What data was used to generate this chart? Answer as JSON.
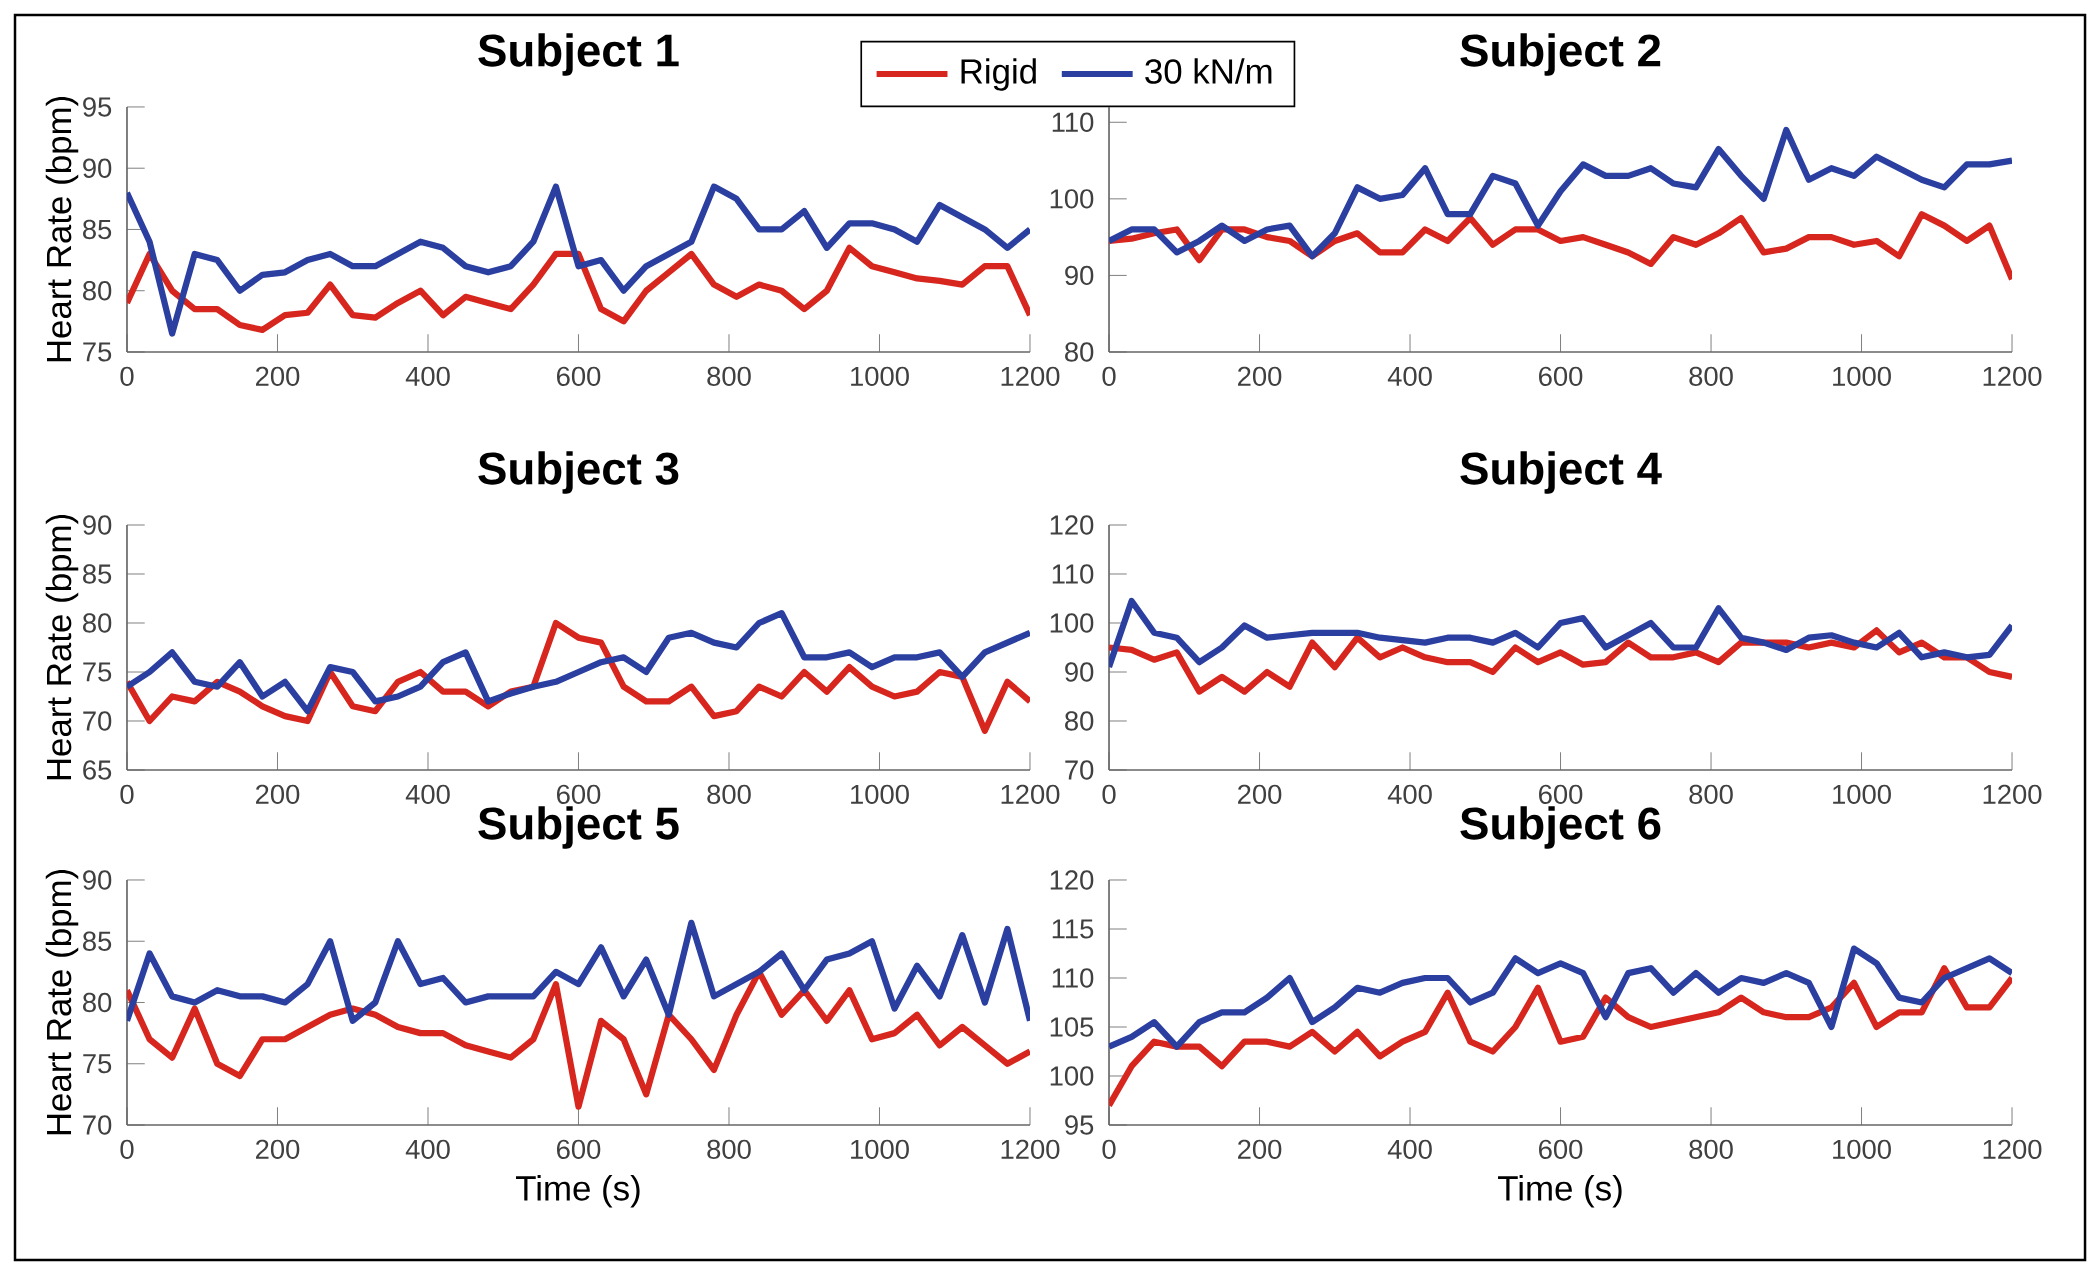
{
  "chart_data": [
    {
      "type": "line",
      "title": "Subject 1",
      "ylabel": "Heart Rate (bpm)",
      "legend": "top",
      "line_style": "solid",
      "xlim": [
        0,
        1200
      ],
      "ylim": [
        75,
        95
      ],
      "xticks": [
        0,
        200,
        400,
        600,
        800,
        1000,
        1200
      ],
      "yticks": [
        75,
        80,
        85,
        90,
        95
      ],
      "x": [
        0,
        30,
        60,
        90,
        120,
        150,
        180,
        210,
        240,
        270,
        300,
        330,
        360,
        390,
        420,
        450,
        480,
        510,
        540,
        570,
        600,
        630,
        660,
        690,
        720,
        750,
        780,
        810,
        840,
        870,
        900,
        930,
        960,
        990,
        1020,
        1050,
        1080,
        1110,
        1140,
        1170,
        1200
      ],
      "series": [
        {
          "name": "Rigid",
          "color": "#d7261e",
          "values": [
            79,
            83,
            80,
            78.5,
            78.5,
            77.2,
            76.8,
            78,
            78.2,
            80.5,
            78,
            77.8,
            79,
            80,
            78,
            79.5,
            79,
            78.5,
            80.5,
            83,
            83,
            78.5,
            77.5,
            80,
            81.5,
            83,
            80.5,
            79.5,
            80.5,
            80,
            78.5,
            80,
            83.5,
            82,
            81.5,
            81,
            80.8,
            80.5,
            82,
            82,
            78
          ]
        },
        {
          "name": "30 kN/m",
          "color": "#2a3fa0",
          "values": [
            88,
            84,
            76.5,
            83,
            82.5,
            80,
            81.3,
            81.5,
            82.5,
            83,
            82,
            82,
            83,
            84,
            83.5,
            82,
            81.5,
            82,
            84,
            88.5,
            82,
            82.5,
            80,
            82,
            83,
            84,
            88.5,
            87.5,
            85,
            85,
            86.5,
            83.5,
            85.5,
            85.5,
            85,
            84,
            87,
            86,
            85,
            83.5,
            85
          ]
        }
      ]
    },
    {
      "type": "line",
      "title": "Subject 2",
      "line_style": "solid",
      "xlim": [
        0,
        1200
      ],
      "ylim": [
        80,
        112
      ],
      "xticks": [
        0,
        200,
        400,
        600,
        800,
        1000,
        1200
      ],
      "yticks": [
        80,
        90,
        100,
        110
      ],
      "x": [
        0,
        30,
        60,
        90,
        120,
        150,
        180,
        210,
        240,
        270,
        300,
        330,
        360,
        390,
        420,
        450,
        480,
        510,
        540,
        570,
        600,
        630,
        660,
        690,
        720,
        750,
        780,
        810,
        840,
        870,
        900,
        930,
        960,
        990,
        1020,
        1050,
        1080,
        1110,
        1140,
        1170,
        1200
      ],
      "series": [
        {
          "color": "#d7261e",
          "values": [
            94.5,
            94.8,
            95.5,
            96,
            92,
            96,
            96,
            95,
            94.5,
            92.5,
            94.5,
            95.5,
            93,
            93,
            96,
            94.5,
            97.5,
            94,
            96,
            96,
            94.5,
            95,
            94,
            93,
            91.5,
            95,
            94,
            95.5,
            97.5,
            93,
            93.5,
            95,
            95,
            94,
            94.5,
            92.5,
            98,
            96.5,
            94.5,
            96.5,
            89.5
          ]
        },
        {
          "color": "#2a3fa0",
          "values": [
            94.5,
            96,
            96,
            93,
            94.5,
            96.5,
            94.5,
            96,
            96.5,
            92.5,
            95.5,
            101.5,
            100,
            100.5,
            104,
            98,
            98,
            103,
            102,
            96.5,
            101,
            104.5,
            103,
            103,
            104,
            102,
            101.5,
            106.5,
            103,
            100,
            109,
            102.5,
            104,
            103,
            105.5,
            104,
            102.5,
            101.5,
            104.5,
            104.5,
            105
          ]
        }
      ]
    },
    {
      "type": "line",
      "title": "Subject 3",
      "ylabel": "Heart Rate (bpm)",
      "line_style": "solid",
      "xlim": [
        0,
        1200
      ],
      "ylim": [
        65,
        90
      ],
      "xticks": [
        0,
        200,
        400,
        600,
        800,
        1000,
        1200
      ],
      "yticks": [
        65,
        70,
        75,
        80,
        85,
        90
      ],
      "x": [
        0,
        30,
        60,
        90,
        120,
        150,
        180,
        210,
        240,
        270,
        300,
        330,
        360,
        390,
        420,
        450,
        480,
        510,
        540,
        570,
        600,
        630,
        660,
        690,
        720,
        750,
        780,
        810,
        840,
        870,
        900,
        930,
        960,
        990,
        1020,
        1050,
        1080,
        1110,
        1140,
        1170,
        1200
      ],
      "series": [
        {
          "color": "#d7261e",
          "values": [
            74,
            70,
            72.5,
            72,
            74,
            73,
            71.5,
            70.5,
            70,
            75,
            71.5,
            71,
            74,
            75,
            73,
            73,
            71.5,
            73,
            73.5,
            80,
            78.5,
            78,
            73.5,
            72,
            72,
            73.5,
            70.5,
            71,
            73.5,
            72.5,
            75,
            73,
            75.5,
            73.5,
            72.5,
            73,
            75,
            74.5,
            69,
            74,
            72
          ]
        },
        {
          "color": "#2a3fa0",
          "values": [
            73.5,
            75,
            77,
            74,
            73.5,
            76,
            72.5,
            74,
            71,
            75.5,
            75,
            72,
            72.5,
            73.5,
            76,
            77,
            72,
            72.8,
            73.5,
            74,
            75,
            76,
            76.5,
            75,
            78.5,
            79,
            78,
            77.5,
            80,
            81,
            76.5,
            76.5,
            77,
            75.5,
            76.5,
            76.5,
            77,
            74.5,
            77,
            78,
            79
          ]
        }
      ]
    },
    {
      "type": "line",
      "title": "Subject 4",
      "line_style": "solid",
      "xlim": [
        0,
        1200
      ],
      "ylim": [
        70,
        120
      ],
      "xticks": [
        0,
        200,
        400,
        600,
        800,
        1000,
        1200
      ],
      "yticks": [
        70,
        80,
        90,
        100,
        110,
        120
      ],
      "x": [
        0,
        30,
        60,
        90,
        120,
        150,
        180,
        210,
        240,
        270,
        300,
        330,
        360,
        390,
        420,
        450,
        480,
        510,
        540,
        570,
        600,
        630,
        660,
        690,
        720,
        750,
        780,
        810,
        840,
        870,
        900,
        930,
        960,
        990,
        1020,
        1050,
        1080,
        1110,
        1140,
        1170,
        1200
      ],
      "series": [
        {
          "color": "#d7261e",
          "values": [
            95,
            94.5,
            92.5,
            94,
            86,
            89,
            86,
            90,
            87,
            96,
            91,
            97,
            93,
            95,
            93,
            92,
            92,
            90,
            95,
            92,
            94,
            91.5,
            92,
            96,
            93,
            93,
            94,
            92,
            96,
            96,
            96,
            95,
            96,
            95,
            98.5,
            94,
            96,
            93,
            93,
            90,
            89
          ]
        },
        {
          "color": "#2a3fa0",
          "values": [
            91,
            104.5,
            98,
            97,
            92,
            95,
            99.5,
            97,
            97.5,
            98,
            98,
            98,
            97,
            96.5,
            96,
            97,
            97,
            96,
            98,
            95,
            100,
            101,
            95,
            97.5,
            100,
            95,
            95,
            103,
            97,
            96,
            94.5,
            97,
            97.5,
            96,
            95,
            98,
            93,
            94,
            93,
            93.5,
            99.5
          ]
        }
      ]
    },
    {
      "type": "line",
      "title": "Subject 5",
      "ylabel": "Heart Rate (bpm)",
      "xlabel": "Time (s)",
      "line_style": "solid",
      "xlim": [
        0,
        1200
      ],
      "ylim": [
        70,
        90
      ],
      "xticks": [
        0,
        200,
        400,
        600,
        800,
        1000,
        1200
      ],
      "yticks": [
        70,
        75,
        80,
        85,
        90
      ],
      "x": [
        0,
        30,
        60,
        90,
        120,
        150,
        180,
        210,
        240,
        270,
        300,
        330,
        360,
        390,
        420,
        450,
        480,
        510,
        540,
        570,
        600,
        630,
        660,
        690,
        720,
        750,
        780,
        810,
        840,
        870,
        900,
        930,
        960,
        990,
        1020,
        1050,
        1080,
        1110,
        1140,
        1170,
        1200
      ],
      "series": [
        {
          "color": "#d7261e",
          "values": [
            81,
            77,
            75.5,
            79.5,
            75,
            74,
            77,
            77,
            78,
            79,
            79.5,
            79,
            78,
            77.5,
            77.5,
            76.5,
            76,
            75.5,
            77,
            81.5,
            71.5,
            78.5,
            77,
            72.5,
            79,
            77,
            74.5,
            79,
            82.5,
            79,
            81,
            78.5,
            81,
            77,
            77.5,
            79,
            76.5,
            78,
            76.5,
            75,
            76
          ]
        },
        {
          "color": "#2a3fa0",
          "values": [
            78.5,
            84,
            80.5,
            80,
            81,
            80.5,
            80.5,
            80,
            81.5,
            85,
            78.5,
            80,
            85,
            81.5,
            82,
            80,
            80.5,
            80.5,
            80.5,
            82.5,
            81.5,
            84.5,
            80.5,
            83.5,
            79,
            86.5,
            80.5,
            81.5,
            82.5,
            84,
            81,
            83.5,
            84,
            85,
            79.5,
            83,
            80.5,
            85.5,
            80,
            86,
            78.5
          ]
        }
      ]
    },
    {
      "type": "line",
      "title": "Subject 6",
      "xlabel": "Time (s)",
      "line_style": "solid",
      "xlim": [
        0,
        1200
      ],
      "ylim": [
        95,
        120
      ],
      "xticks": [
        0,
        200,
        400,
        600,
        800,
        1000,
        1200
      ],
      "yticks": [
        95,
        100,
        105,
        110,
        115,
        120
      ],
      "x": [
        0,
        30,
        60,
        90,
        120,
        150,
        180,
        210,
        240,
        270,
        300,
        330,
        360,
        390,
        420,
        450,
        480,
        510,
        540,
        570,
        600,
        630,
        660,
        690,
        720,
        750,
        780,
        810,
        840,
        870,
        900,
        930,
        960,
        990,
        1020,
        1050,
        1080,
        1110,
        1140,
        1170,
        1200
      ],
      "series": [
        {
          "color": "#d7261e",
          "values": [
            97,
            101,
            103.5,
            103,
            103,
            101,
            103.5,
            103.5,
            103,
            104.5,
            102.5,
            104.5,
            102,
            103.5,
            104.5,
            108.5,
            103.5,
            102.5,
            105,
            109,
            103.5,
            104,
            108,
            106,
            105,
            105.5,
            106,
            106.5,
            108,
            106.5,
            106,
            106,
            107,
            109.5,
            105,
            106.5,
            106.5,
            111,
            107,
            107,
            110
          ]
        },
        {
          "color": "#2a3fa0",
          "values": [
            103,
            104,
            105.5,
            103,
            105.5,
            106.5,
            106.5,
            108,
            110,
            105.5,
            107,
            109,
            108.5,
            109.5,
            110,
            110,
            107.5,
            108.5,
            112,
            110.5,
            111.5,
            110.5,
            106,
            110.5,
            111,
            108.5,
            110.5,
            108.5,
            110,
            109.5,
            110.5,
            109.5,
            105,
            113,
            111.5,
            108,
            107.5,
            110,
            111,
            112,
            110.5
          ]
        }
      ]
    }
  ]
}
